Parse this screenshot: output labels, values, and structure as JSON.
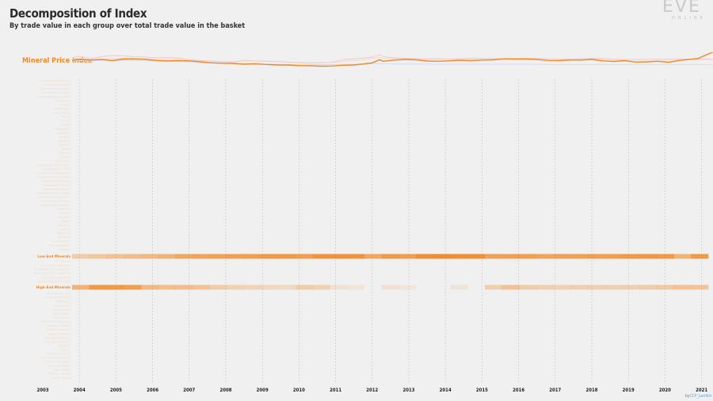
{
  "title": "Decomposition of Index",
  "subtitle": "By trade value in each group over total trade value in the basket",
  "logo": {
    "main": "EVE",
    "sub": "ONLINE"
  },
  "index_label": "Mineral Price Index",
  "credit": {
    "prefix": "by",
    "handle": "CCP_Larrikin"
  },
  "colors": {
    "accent": "#f08a28",
    "background": "#f0f0f0",
    "gridline": "#c4c4c4",
    "faint_label": "#eedccd"
  },
  "chart_data": [
    {
      "type": "line",
      "title": "Decomposition of Index",
      "subtitle": "By trade value in each group over total trade value in the basket",
      "xlabel": "",
      "ylabel": "",
      "x": [
        2003.8,
        2004.0,
        2004.3,
        2004.6,
        2004.9,
        2005.2,
        2005.5,
        2005.8,
        2006.1,
        2006.4,
        2006.7,
        2007.0,
        2007.3,
        2007.6,
        2007.9,
        2008.2,
        2008.5,
        2008.8,
        2009.1,
        2009.4,
        2009.7,
        2010.0,
        2010.3,
        2010.6,
        2010.9,
        2011.2,
        2011.5,
        2011.8,
        2012.0,
        2012.2,
        2012.3,
        2012.6,
        2012.9,
        2013.2,
        2013.5,
        2013.8,
        2014.1,
        2014.4,
        2014.7,
        2015.0,
        2015.3,
        2015.6,
        2015.9,
        2016.2,
        2016.5,
        2016.8,
        2017.1,
        2017.4,
        2017.7,
        2018.0,
        2018.3,
        2018.6,
        2018.9,
        2019.2,
        2019.5,
        2019.8,
        2020.1,
        2020.4,
        2020.7,
        2020.9,
        2021.1,
        2021.3
      ],
      "series": [
        {
          "role": "index",
          "values": [
            100,
            104,
            101,
            104,
            98,
            106,
            107,
            104,
            99,
            96,
            98,
            97,
            92,
            87,
            85,
            84,
            80,
            82,
            79,
            76,
            76,
            73,
            72,
            70,
            71,
            75,
            76,
            82,
            87,
            103,
            95,
            101,
            104,
            102,
            96,
            95,
            97,
            100,
            98,
            101,
            102,
            107,
            106,
            106,
            104,
            99,
            98,
            101,
            101,
            104,
            97,
            94,
            98,
            91,
            92,
            95,
            90,
            99,
            105,
            109,
            125,
            140
          ]
        },
        {
          "role": "faint-1",
          "values": [
            112,
            120,
            108,
            118,
            124,
            122,
            118,
            116,
            113,
            115,
            112,
            102,
            98,
            95,
            92,
            90,
            100,
            97,
            96,
            94,
            90,
            87,
            86,
            88,
            89,
            104,
            108,
            112,
            116,
            128,
            118,
            112,
            110,
            108,
            106,
            108,
            106,
            108,
            110,
            110,
            108,
            109,
            108,
            110,
            111,
            107,
            105,
            106,
            108,
            110,
            108,
            106,
            104,
            103,
            104,
            105,
            104,
            106,
            106,
            106,
            106,
            106
          ]
        },
        {
          "role": "faint-2",
          "values": [
            106,
            110,
            104,
            106,
            108,
            110,
            110,
            108,
            106,
            108,
            107,
            104,
            100,
            96,
            94,
            93,
            97,
            96,
            94,
            93,
            90,
            89,
            86,
            87,
            88,
            96,
            98,
            104,
            110,
            114,
            110,
            108,
            108,
            107,
            106,
            107,
            106,
            107,
            108,
            108,
            107,
            108,
            107,
            108,
            110,
            106,
            104,
            105,
            106,
            107,
            106,
            105,
            104,
            103,
            104,
            104,
            103,
            104,
            103,
            104,
            104,
            104
          ]
        },
        {
          "role": "faint-3",
          "values": [
            96,
            99,
            97,
            99,
            100,
            100,
            99,
            97,
            96,
            95,
            94,
            92,
            90,
            88,
            86,
            85,
            83,
            81,
            80,
            80,
            79,
            79,
            78,
            78,
            78,
            79,
            80,
            81,
            82,
            84,
            82,
            81,
            81,
            81,
            80,
            80,
            80,
            80,
            80,
            80,
            80,
            80,
            80,
            80,
            80,
            79,
            79,
            79,
            79,
            79,
            79,
            79,
            79,
            79,
            79,
            79,
            79,
            79,
            79,
            79,
            79,
            79
          ]
        }
      ]
    },
    {
      "type": "heatmap",
      "xlabel": "",
      "x_ticks": [
        "2003",
        "2004",
        "2005",
        "2006",
        "2007",
        "2008",
        "2009",
        "2010",
        "2011",
        "2012",
        "2013",
        "2014",
        "2015",
        "2016",
        "2017",
        "2018",
        "2019",
        "2020",
        "2021"
      ],
      "rows": [
        {
          "label": "Low-End Minerals",
          "values": [
            0.35,
            0.4,
            0.45,
            0.5,
            0.55,
            0.6,
            0.72,
            0.75,
            0.78,
            0.8,
            0.82,
            0.85,
            0.85,
            0.82,
            0.9,
            0.92,
            0.9,
            0.72,
            0.85,
            0.82,
            0.95,
            0.98,
            0.96,
            0.95,
            0.78,
            0.8,
            0.82,
            0.75,
            0.78,
            0.78,
            0.8,
            0.82,
            0.85,
            0.88,
            0.85,
            0.6,
            0.85
          ]
        },
        {
          "label": "High-End Minerals",
          "values": [
            0.6,
            0.85,
            0.85,
            0.8,
            0.55,
            0.5,
            0.5,
            0.45,
            0.35,
            0.3,
            0.28,
            0.25,
            0.22,
            0.35,
            0.3,
            0.15,
            0.1,
            0.0,
            0.15,
            0.1,
            0.0,
            0.0,
            0.12,
            0.0,
            0.32,
            0.45,
            0.35,
            0.32,
            0.3,
            0.32,
            0.32,
            0.32,
            0.32,
            0.35,
            0.38,
            0.45,
            0.42
          ]
        }
      ],
      "faint_row_labels": [
        "Compressed Mercoxit",
        "Compressed Bistot",
        "Compressed Arkonor",
        "Compressed Crokite",
        "Compressed Spodumain",
        "Dark Ochre",
        "Gneiss",
        "Hedbergite",
        "Hemorphite",
        "Jaspet",
        "Kernite",
        "Omber",
        "Plagioclase",
        "Pyroxeres",
        "Scordite",
        "Veldspar",
        "Mercoxit",
        "Bistot",
        "Arkonor",
        "Crokite",
        "Spodumain",
        "Compressed Dark Ochre",
        "Compressed Gneiss",
        "Compressed Hedbergite",
        "Compressed Hemorphite",
        "Compressed Jaspet",
        "Compressed Kernite",
        "Compressed Omber",
        "Compressed Plagioclase",
        "Compressed Pyroxeres",
        "Compressed Scordite",
        "Compressed Veldspar",
        "Tritanium",
        "Pyerite",
        "Mexallon",
        "Isogen",
        "Nocxium",
        "Zydrine",
        "Megacyte",
        "Morphite",
        "Ice Products",
        "Moon Materials",
        "Salvage",
        "Planetary Materials",
        "Fuel Blocks",
        "Gas Clouds",
        "Raw Moon Materials",
        "Processed Moon Materials",
        "Advanced Moon Materials",
        "Composite Reactions",
        "Intermediate Materials",
        "Polymer Reactions",
        "Biochemical Reactions",
        "Hybrid Polymers",
        "Booster Materials",
        "Fullerenes",
        "Cytoserocin",
        "Mykoserocin",
        "Heavy Water",
        "Liquid Ozone",
        "Strontium Clathrates",
        "Oxygen Isotopes",
        "Nitrogen Isotopes",
        "Helium Isotopes",
        "Hydrogen Isotopes",
        "Enriched Uranium",
        "Robotics",
        "Coolant",
        "Mechanical Parts",
        "Consumer Electronics",
        "Construction Blocks",
        "Reactive Metals",
        "Toxic Metals",
        "Precious Metals",
        "Heavy Metals"
      ]
    }
  ]
}
